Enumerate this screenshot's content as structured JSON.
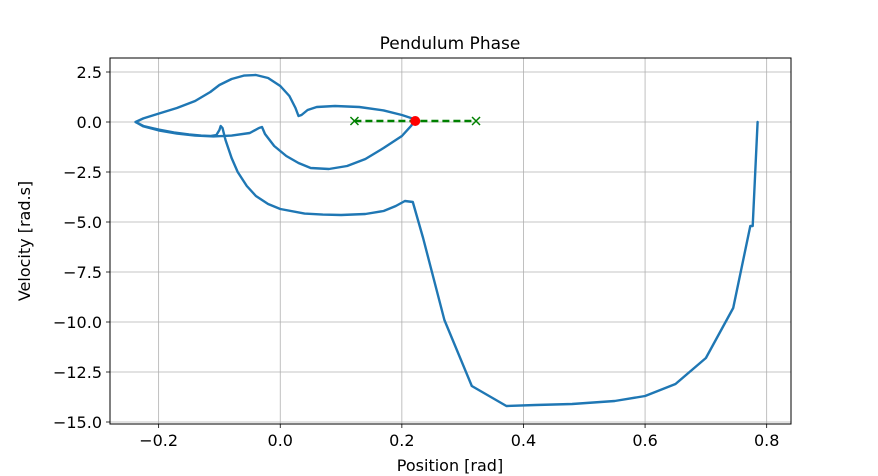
{
  "chart_data": {
    "type": "line",
    "title": "Pendulum Phase",
    "xlabel": "Position [rad]",
    "ylabel": "Velocity [rad.s]",
    "xlim": [
      -0.28,
      0.84
    ],
    "ylim": [
      -15.1,
      3.2
    ],
    "xticks": [
      -0.2,
      0.0,
      0.2,
      0.4,
      0.6,
      0.8
    ],
    "xtick_labels": [
      "−0.2",
      "0.0",
      "0.2",
      "0.4",
      "0.6",
      "0.8"
    ],
    "yticks": [
      2.5,
      0.0,
      -2.5,
      -5.0,
      -7.5,
      -10.0,
      -12.5,
      -15.0
    ],
    "ytick_labels": [
      "2.5",
      "0.0",
      "−2.5",
      "−5.0",
      "−7.5",
      "−10.0",
      "−12.5",
      "−15.0"
    ],
    "grid": true,
    "colors": {
      "trajectory": "#1f77b4",
      "target": "#008000",
      "current": "#ff0000",
      "grid": "#b0b0b0"
    },
    "series": [
      {
        "kind": "trajectory",
        "x": [
          0.785,
          0.777,
          0.773,
          0.745,
          0.7,
          0.65,
          0.6,
          0.55,
          0.48,
          0.42,
          0.372,
          0.315,
          0.27,
          0.235,
          0.218,
          0.205,
          0.19,
          0.17,
          0.14,
          0.1,
          0.07,
          0.04,
          0.0,
          -0.02,
          -0.04,
          -0.055,
          -0.07,
          -0.08,
          -0.09,
          -0.095,
          -0.098,
          -0.1,
          -0.105,
          -0.115,
          -0.13,
          -0.15,
          -0.175,
          -0.2,
          -0.225,
          -0.238,
          -0.225,
          -0.2,
          -0.17,
          -0.14,
          -0.115,
          -0.1,
          -0.08,
          -0.06,
          -0.04,
          -0.02,
          0.0,
          0.015,
          0.025,
          0.03,
          0.035,
          0.045,
          0.06,
          0.09,
          0.13,
          0.17,
          0.2,
          0.215,
          0.222,
          0.215,
          0.2,
          0.17,
          0.14,
          0.11,
          0.08,
          0.05,
          0.03,
          0.01,
          -0.01,
          -0.025,
          -0.03,
          -0.035,
          -0.05,
          -0.08,
          -0.11,
          -0.14,
          -0.17,
          -0.2,
          -0.225,
          -0.238
        ],
        "y": [
          0.0,
          -5.2,
          -5.2,
          -9.3,
          -11.8,
          -13.1,
          -13.7,
          -13.95,
          -14.1,
          -14.15,
          -14.2,
          -13.2,
          -9.9,
          -5.8,
          -4.0,
          -3.95,
          -4.2,
          -4.45,
          -4.6,
          -4.65,
          -4.63,
          -4.58,
          -4.35,
          -4.1,
          -3.7,
          -3.2,
          -2.5,
          -1.8,
          -0.9,
          -0.3,
          -0.2,
          -0.4,
          -0.65,
          -0.7,
          -0.68,
          -0.62,
          -0.52,
          -0.38,
          -0.2,
          0.0,
          0.18,
          0.42,
          0.7,
          1.05,
          1.5,
          1.85,
          2.15,
          2.32,
          2.35,
          2.2,
          1.8,
          1.3,
          0.7,
          0.3,
          0.35,
          0.6,
          0.75,
          0.8,
          0.75,
          0.58,
          0.35,
          0.2,
          0.1,
          -0.2,
          -0.7,
          -1.3,
          -1.85,
          -2.2,
          -2.35,
          -2.3,
          -2.05,
          -1.7,
          -1.2,
          -0.6,
          -0.25,
          -0.3,
          -0.55,
          -0.68,
          -0.72,
          -0.68,
          -0.58,
          -0.42,
          -0.22,
          0.0
        ]
      },
      {
        "kind": "target",
        "x": [
          0.122,
          0.322
        ],
        "y": [
          0.05,
          0.05
        ]
      }
    ],
    "current_point": {
      "x": 0.222,
      "y": 0.05
    }
  }
}
